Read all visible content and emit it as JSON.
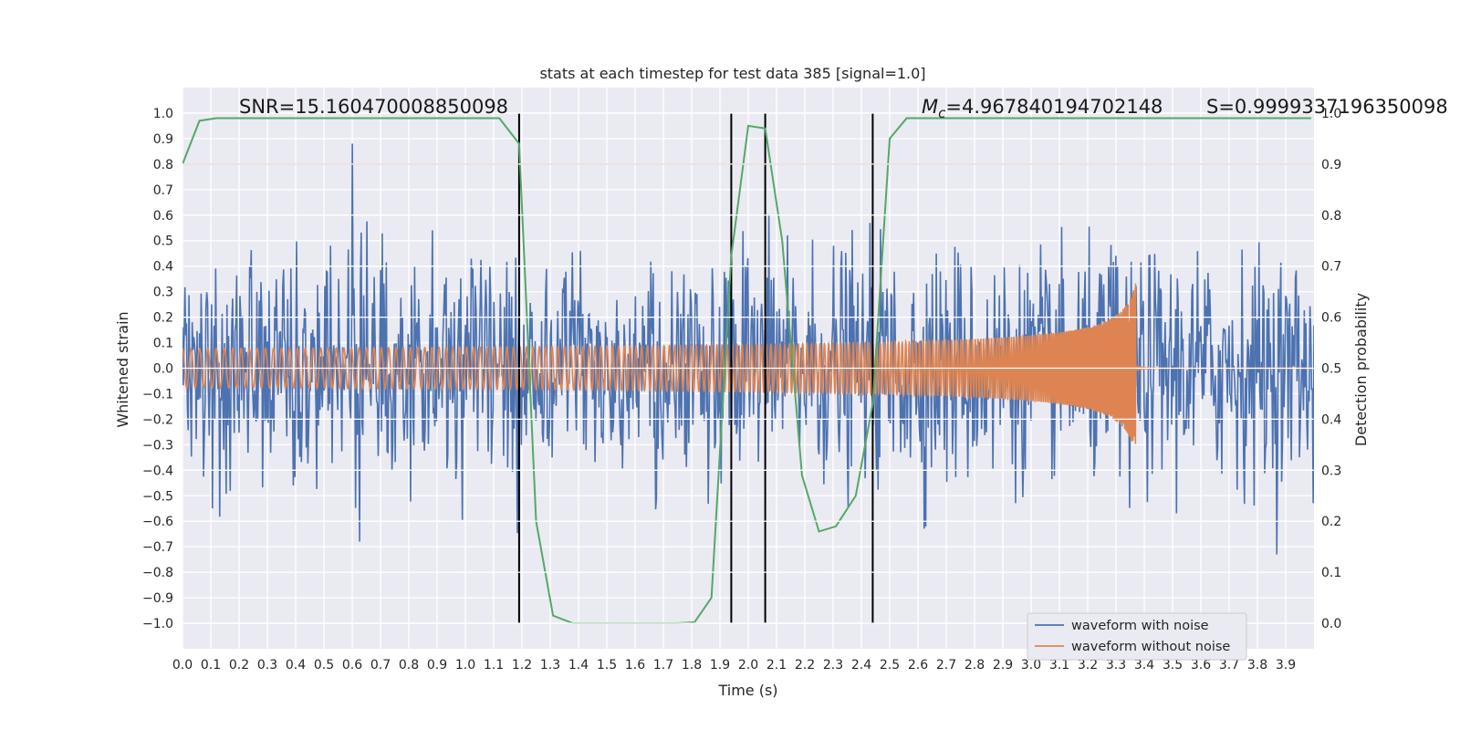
{
  "chart_data": {
    "type": "line",
    "title": "stats at each timestep for test data 385 [signal=1.0]",
    "xlabel": "Time (s)",
    "ylabel": "Whitened strain",
    "y2label": "Detection probability",
    "xlim": [
      0.0,
      4.0
    ],
    "ylim": [
      -1.1,
      1.1
    ],
    "y2lim": [
      -0.05,
      1.05
    ],
    "xticks": [
      "0.0",
      "0.1",
      "0.2",
      "0.3",
      "0.4",
      "0.5",
      "0.6",
      "0.7",
      "0.8",
      "0.9",
      "1.0",
      "1.1",
      "1.2",
      "1.3",
      "1.4",
      "1.5",
      "1.6",
      "1.7",
      "1.8",
      "1.9",
      "2.0",
      "2.1",
      "2.2",
      "2.3",
      "2.4",
      "2.5",
      "2.6",
      "2.7",
      "2.8",
      "2.9",
      "3.0",
      "3.1",
      "3.2",
      "3.3",
      "3.4",
      "3.5",
      "3.6",
      "3.7",
      "3.8",
      "3.9"
    ],
    "yticks": [
      "1.0",
      "0.9",
      "0.8",
      "0.7",
      "0.6",
      "0.5",
      "0.4",
      "0.3",
      "0.2",
      "0.1",
      "0.0",
      "−0.1",
      "−0.2",
      "−0.3",
      "−0.4",
      "−0.5",
      "−0.6",
      "−0.7",
      "−0.8",
      "−0.9",
      "−1.0"
    ],
    "y2ticks": [
      "1.0",
      "0.9",
      "0.8",
      "0.7",
      "0.6",
      "0.5",
      "0.4",
      "0.3",
      "0.2",
      "0.1",
      "0.0"
    ],
    "annotations": {
      "snr": "SNR=15.160470008850098",
      "mc_symbol": "M",
      "mc_sub": "c",
      "mc_value": "=4.967840194702148",
      "s": "S=0.9999337196350098"
    },
    "threshold": {
      "y2": 0.9,
      "color": "#c44e52"
    },
    "vlines": [
      1.19,
      1.94,
      2.06,
      2.44
    ],
    "series": [
      {
        "name": "waveform with noise",
        "color": "#4c72b0",
        "kind": "noise",
        "sigma": 0.22,
        "samples": 1400
      },
      {
        "name": "waveform without noise",
        "color": "#dd8452",
        "kind": "chirp",
        "merger_time": 3.37,
        "amp_start": 0.05,
        "amp_peak": 0.37
      },
      {
        "name": "detection probability",
        "color": "#55a868",
        "axis": "right",
        "x": [
          0.0,
          0.06,
          0.12,
          0.5,
          1.0,
          1.12,
          1.19,
          1.25,
          1.31,
          1.38,
          1.5,
          1.75,
          1.81,
          1.87,
          1.94,
          2.0,
          2.06,
          2.12,
          2.19,
          2.25,
          2.31,
          2.38,
          2.44,
          2.5,
          2.56,
          3.0,
          3.5,
          3.99
        ],
        "values": [
          0.9,
          0.985,
          0.99,
          0.99,
          0.99,
          0.99,
          0.94,
          0.2,
          0.015,
          0.0,
          0.0,
          0.0,
          0.002,
          0.05,
          0.72,
          0.975,
          0.97,
          0.75,
          0.29,
          0.18,
          0.19,
          0.25,
          0.43,
          0.95,
          0.99,
          0.99,
          0.99,
          0.99
        ]
      }
    ],
    "legend": {
      "location": "lower-right"
    }
  }
}
